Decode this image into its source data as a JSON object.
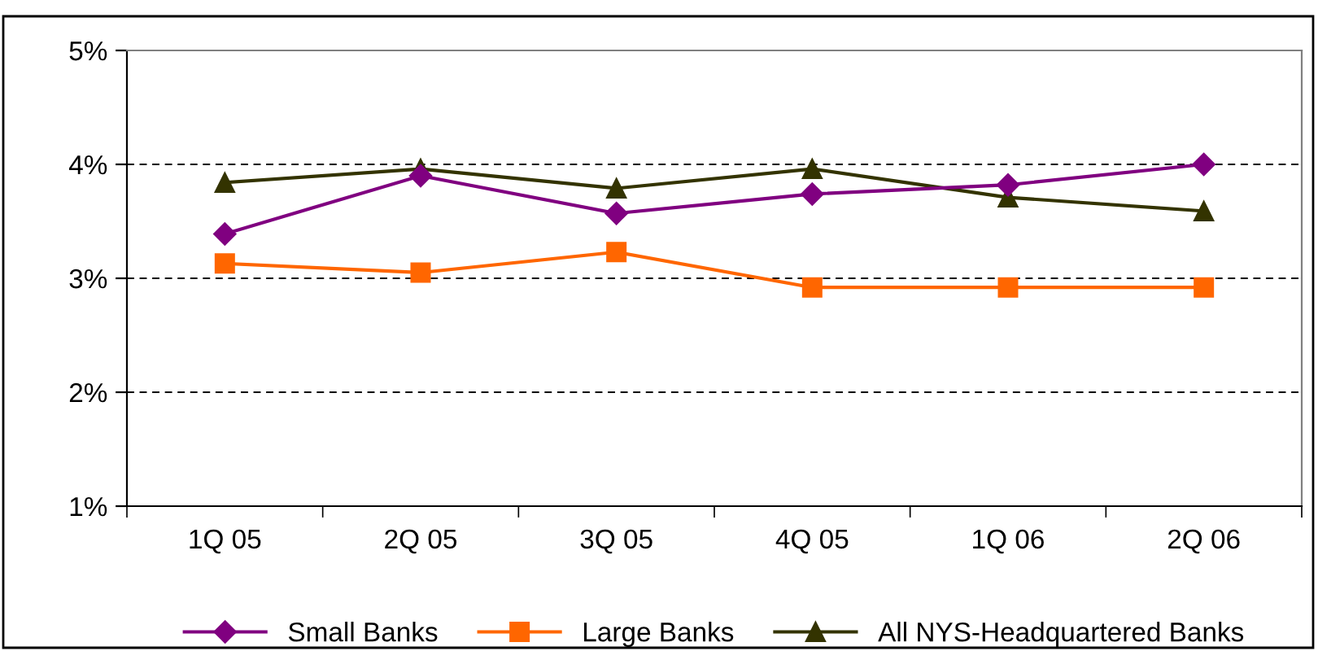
{
  "chart_data": {
    "type": "line",
    "categories": [
      "1Q 05",
      "2Q 05",
      "3Q 05",
      "4Q 05",
      "1Q 06",
      "2Q 06"
    ],
    "series": [
      {
        "name": "Small Banks",
        "color": "#800080",
        "marker": "diamond",
        "values": [
          3.39,
          3.9,
          3.57,
          3.74,
          3.82,
          4.0
        ]
      },
      {
        "name": "Large Banks",
        "color": "#ff6600",
        "marker": "square",
        "values": [
          3.13,
          3.05,
          3.23,
          2.92,
          2.92,
          2.92
        ]
      },
      {
        "name": "All NYS-Headquartered Banks",
        "color": "#333300",
        "marker": "triangle",
        "values": [
          3.84,
          3.96,
          3.79,
          3.96,
          3.71,
          3.59
        ]
      }
    ],
    "ylim": [
      1,
      5
    ],
    "yticks": [
      {
        "value": 1,
        "label": "1%"
      },
      {
        "value": 2,
        "label": "2%"
      },
      {
        "value": 3,
        "label": "3%"
      },
      {
        "value": 4,
        "label": "4%"
      },
      {
        "value": 5,
        "label": "5%"
      }
    ],
    "grid": "y",
    "legend": "bottom"
  }
}
